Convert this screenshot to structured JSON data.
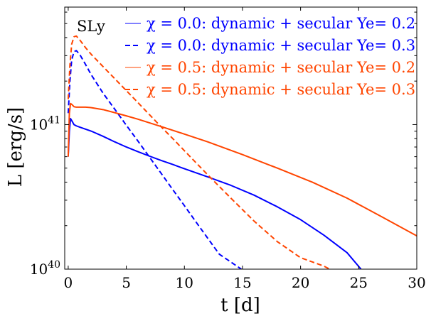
{
  "chart_data": {
    "type": "line",
    "title": "",
    "annotation": "SLy",
    "xlabel": "t [d]",
    "ylabel": "L [erg/s]",
    "xlim": [
      -0.3,
      30
    ],
    "ylim": [
      1e+40,
      6.5e+41
    ],
    "yscale": "log",
    "x_ticks": [
      0,
      5,
      10,
      15,
      20,
      25,
      30
    ],
    "x_tick_labels": [
      "0",
      "5",
      "10",
      "15",
      "20",
      "25",
      "30"
    ],
    "y_ticks": [
      1e+40,
      1e+41
    ],
    "y_tick_labels": [
      {
        "base": "10",
        "exp": "40"
      },
      {
        "base": "10",
        "exp": "41"
      }
    ],
    "legend_location": "top-right",
    "series": [
      {
        "name": "χ = 0.0:  dynamic + secular Ye= 0.2",
        "color": "#0000ff",
        "linestyle": "solid",
        "x": [
          0.0,
          0.1,
          0.2,
          0.35,
          0.5,
          0.7,
          1.0,
          2.0,
          3.0,
          4.0,
          5.0,
          6.0,
          7.0,
          8.0,
          9.0,
          10.0,
          12.0,
          14.0,
          16.0,
          18.0,
          20.0,
          22.0,
          24.0,
          25.2
        ],
        "y": [
          6e+40,
          9e+40,
          1.1e+41,
          1.05e+41,
          1e+41,
          9.8e+40,
          9.6e+40,
          9e+40,
          8.3e+40,
          7.6e+40,
          7e+40,
          6.5e+40,
          6.05e+40,
          5.65e+40,
          5.3e+40,
          4.95e+40,
          4.35e+40,
          3.8e+40,
          3.25e+40,
          2.7e+40,
          2.2e+40,
          1.72e+40,
          1.3e+40,
          1e+40
        ]
      },
      {
        "name": "χ = 0.0:  dynamic + secular Ye= 0.3",
        "color": "#0000ff",
        "linestyle": "dashed",
        "x": [
          0.0,
          0.15,
          0.3,
          0.5,
          0.7,
          1.0,
          1.5,
          2.0,
          3.0,
          4.0,
          5.0,
          6.0,
          7.0,
          8.0,
          9.0,
          10.0,
          11.0,
          12.0,
          13.0,
          14.0,
          14.9
        ],
        "y": [
          1.2e+41,
          2e+41,
          2.8e+41,
          3.2e+41,
          3.25e+41,
          3.05e+41,
          2.6e+41,
          2.2e+41,
          1.65e+41,
          1.28e+41,
          9.9e+40,
          7.7e+40,
          5.95e+40,
          4.6e+40,
          3.55e+40,
          2.75e+40,
          2.12e+40,
          1.64e+40,
          1.27e+40,
          1.12e+40,
          1e+40
        ]
      },
      {
        "name": "χ = 0.5:  dynamic + secular Ye= 0.2",
        "color": "#ff4500",
        "linestyle": "solid",
        "x": [
          0.0,
          0.1,
          0.2,
          0.35,
          0.5,
          0.7,
          1.0,
          1.5,
          2.0,
          3.0,
          4.0,
          5.0,
          6.0,
          8.0,
          10.0,
          12.0,
          15.0,
          18.0,
          21.0,
          24.0,
          27.0,
          30.0
        ],
        "y": [
          6e+40,
          1.2e+41,
          1.4e+41,
          1.37e+41,
          1.33e+41,
          1.32e+41,
          1.32e+41,
          1.32e+41,
          1.31e+41,
          1.27e+41,
          1.21e+41,
          1.15e+41,
          1.09e+41,
          9.7e+40,
          8.6e+40,
          7.6e+40,
          6.2e+40,
          5e+40,
          4e+40,
          3.1e+40,
          2.3e+40,
          1.7e+40
        ]
      },
      {
        "name": "χ = 0.5:  dynamic + secular Ye= 0.3",
        "color": "#ff4500",
        "linestyle": "dashed",
        "x": [
          0.0,
          0.15,
          0.3,
          0.5,
          0.7,
          1.0,
          1.5,
          2.0,
          3.0,
          4.0,
          5.0,
          6.0,
          7.0,
          8.0,
          9.0,
          10.0,
          12.0,
          14.0,
          16.0,
          18.0,
          20.0,
          22.0,
          22.5
        ],
        "y": [
          1.5e+41,
          2.6e+41,
          3.6e+41,
          4.05e+41,
          4.1e+41,
          3.85e+41,
          3.4e+41,
          3.05e+41,
          2.52e+41,
          2.08e+41,
          1.72e+41,
          1.42e+41,
          1.17e+41,
          9.65e+40,
          8e+40,
          6.6e+40,
          4.5e+40,
          3.1e+40,
          2.15e+40,
          1.55e+40,
          1.2e+40,
          1.05e+40,
          1e+40
        ]
      }
    ]
  }
}
